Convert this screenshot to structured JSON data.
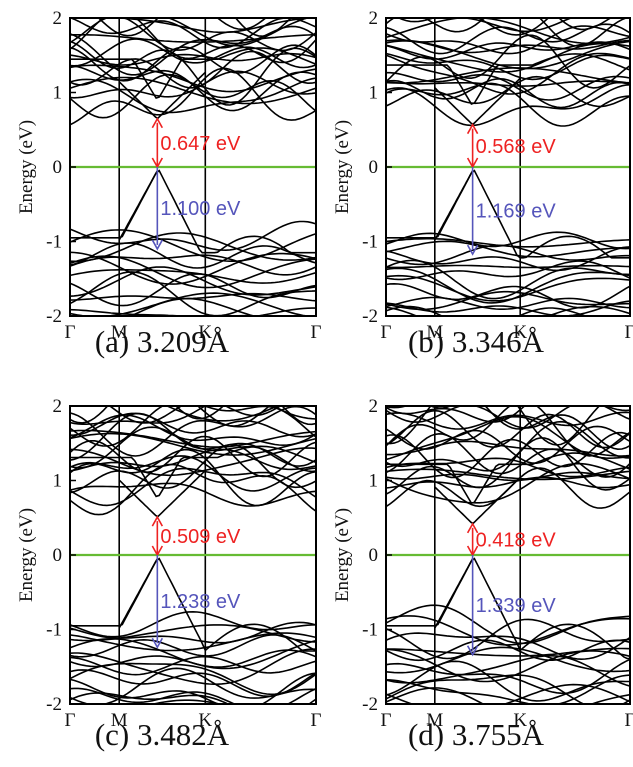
{
  "figure": {
    "title": ""
  },
  "colors": {
    "band": "#000000",
    "fermi": "#66bb33",
    "gap_up": "#ee2222",
    "gap_down": "#5555bb"
  },
  "chart_data": [
    {
      "type": "line",
      "caption": "(a) 3.209Å",
      "ylabel": "Energy (eV)",
      "ylim": [
        -2,
        2
      ],
      "yticks": [
        "2",
        "1",
        "0",
        "-1",
        "-2"
      ],
      "xticks": [
        "Γ",
        "M",
        "K",
        "Γ"
      ],
      "fermi_level": 0,
      "annotations": [
        {
          "label": "0.647 eV",
          "from": 0,
          "to": 0.647,
          "color": "red"
        },
        {
          "label": "1.100 eV",
          "from": 0,
          "to": -1.1,
          "color": "blue"
        }
      ]
    },
    {
      "type": "line",
      "caption": "(b) 3.346Å",
      "ylabel": "Energy (eV)",
      "ylim": [
        -2,
        2
      ],
      "yticks": [
        "2",
        "1",
        "0",
        "-1",
        "-2"
      ],
      "xticks": [
        "Γ",
        "M",
        "K",
        "Γ"
      ],
      "fermi_level": 0,
      "annotations": [
        {
          "label": "0.568 eV",
          "from": 0,
          "to": 0.568,
          "color": "red"
        },
        {
          "label": "1.169 eV",
          "from": 0,
          "to": -1.169,
          "color": "blue"
        }
      ]
    },
    {
      "type": "line",
      "caption": "(c) 3.482Å",
      "ylabel": "Energy (eV)",
      "ylim": [
        -2,
        2
      ],
      "yticks": [
        "2",
        "1",
        "0",
        "-1",
        "-2"
      ],
      "xticks": [
        "Γ",
        "M",
        "K",
        "Γ"
      ],
      "fermi_level": 0,
      "annotations": [
        {
          "label": "0.509 eV",
          "from": 0,
          "to": 0.509,
          "color": "red"
        },
        {
          "label": "1.238 eV",
          "from": 0,
          "to": -1.238,
          "color": "blue"
        }
      ]
    },
    {
      "type": "line",
      "caption": "(d) 3.755Å",
      "ylabel": "Energy (eV)",
      "ylim": [
        -2,
        2
      ],
      "yticks": [
        "2",
        "1",
        "0",
        "-1",
        "-2"
      ],
      "xticks": [
        "Γ",
        "M",
        "K",
        "Γ"
      ],
      "fermi_level": 0,
      "annotations": [
        {
          "label": "0.418 eV",
          "from": 0,
          "to": 0.418,
          "color": "red"
        },
        {
          "label": "1.339 eV",
          "from": 0,
          "to": -1.339,
          "color": "blue"
        }
      ]
    }
  ]
}
